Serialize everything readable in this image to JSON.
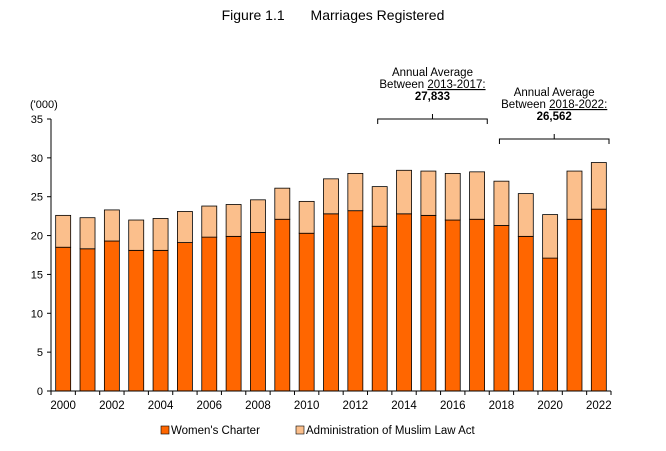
{
  "figure": {
    "number": "Figure 1.1",
    "title": "Marriages Registered"
  },
  "chart_data": {
    "type": "bar",
    "stacked": true,
    "categories": [
      "2000",
      "2001",
      "2002",
      "2003",
      "2004",
      "2005",
      "2006",
      "2007",
      "2008",
      "2009",
      "2010",
      "2011",
      "2012",
      "2013",
      "2014",
      "2015",
      "2016",
      "2017",
      "2018",
      "2019",
      "2020",
      "2021",
      "2022"
    ],
    "x_tick_labels": [
      "2000",
      "2002",
      "2004",
      "2006",
      "2008",
      "2010",
      "2012",
      "2014",
      "2016",
      "2018",
      "2020",
      "2022"
    ],
    "series": [
      {
        "name": "Women's Charter",
        "color": "#ff6600",
        "values": [
          18.5,
          18.3,
          19.3,
          18.1,
          18.1,
          19.1,
          19.8,
          19.9,
          20.4,
          22.1,
          20.3,
          22.8,
          23.2,
          21.2,
          22.8,
          22.6,
          22.0,
          22.1,
          21.3,
          19.9,
          17.1,
          22.1,
          23.4
        ]
      },
      {
        "name": "Administration of Muslim Law Act",
        "color": "#fbbf8c",
        "values": [
          4.1,
          4.0,
          4.0,
          3.9,
          4.1,
          4.0,
          4.0,
          4.1,
          4.2,
          4.0,
          4.1,
          4.5,
          4.8,
          5.1,
          5.6,
          5.7,
          6.0,
          6.1,
          5.7,
          5.5,
          5.6,
          6.2,
          6.0
        ]
      }
    ],
    "ylabel": "('000)",
    "ylim": [
      0,
      35
    ],
    "yticks": [
      0,
      5,
      10,
      15,
      20,
      25,
      30,
      35
    ],
    "legend_position": "bottom",
    "grid": false,
    "annotations": [
      {
        "label_lines": [
          "Annual Average",
          "Between "
        ],
        "period": "2013-2017:",
        "value": "27,833",
        "from": "2013",
        "to": "2017"
      },
      {
        "label_lines": [
          "Annual Average",
          "Between "
        ],
        "period": "2018-2022:",
        "value": "26,562",
        "from": "2018",
        "to": "2022"
      }
    ]
  }
}
